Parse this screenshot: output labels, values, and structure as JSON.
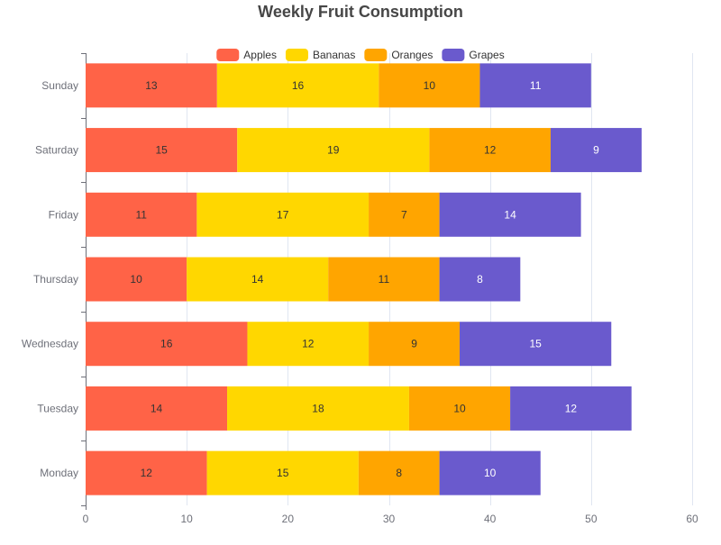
{
  "chart_data": {
    "type": "bar",
    "orientation": "horizontal",
    "stacked": true,
    "title": "Weekly Fruit Consumption",
    "xlabel": "",
    "ylabel": "",
    "xlim": [
      0,
      60
    ],
    "x_ticks": [
      0,
      10,
      20,
      30,
      40,
      50,
      60
    ],
    "grid": "vertical",
    "legend_position": "top-center",
    "categories": [
      "Monday",
      "Tuesday",
      "Wednesday",
      "Thursday",
      "Friday",
      "Saturday",
      "Sunday"
    ],
    "series": [
      {
        "name": "Apples",
        "color": "#ff6347",
        "label_color": "#333333",
        "values": [
          12,
          14,
          16,
          10,
          11,
          15,
          13
        ]
      },
      {
        "name": "Bananas",
        "color": "#ffd700",
        "label_color": "#333333",
        "values": [
          15,
          18,
          12,
          14,
          17,
          19,
          16
        ]
      },
      {
        "name": "Oranges",
        "color": "#ffa500",
        "label_color": "#333333",
        "values": [
          8,
          10,
          9,
          11,
          7,
          12,
          10
        ]
      },
      {
        "name": "Grapes",
        "color": "#6a5acd",
        "label_color": "#ffffff",
        "values": [
          10,
          12,
          15,
          8,
          14,
          9,
          11
        ]
      }
    ]
  }
}
